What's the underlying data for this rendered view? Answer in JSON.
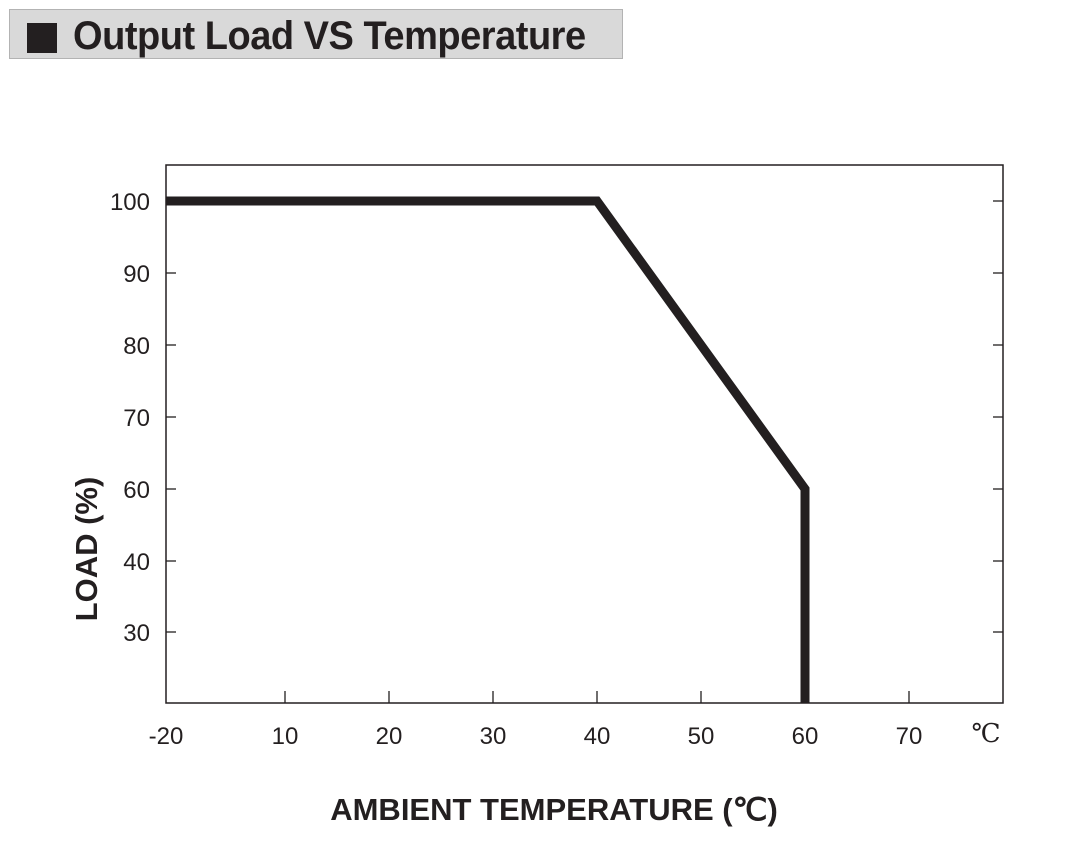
{
  "header": {
    "title": "Output Load VS Temperature"
  },
  "chart_data": {
    "type": "line",
    "title": "Output Load VS Temperature",
    "xlabel": "AMBIENT TEMPERATURE (℃)",
    "ylabel": "LOAD (%)",
    "x_unit": "℃",
    "x_ticks": [
      "-20",
      "10",
      "20",
      "30",
      "40",
      "50",
      "60",
      "70"
    ],
    "y_ticks": [
      "100",
      "90",
      "80",
      "70",
      "60",
      "40",
      "30"
    ],
    "grid": false,
    "series": [
      {
        "x": [
          -20,
          40,
          60,
          60
        ],
        "y": [
          100,
          100,
          60,
          "below 30 (axis bottom)"
        ],
        "color": "#231f20"
      }
    ]
  }
}
